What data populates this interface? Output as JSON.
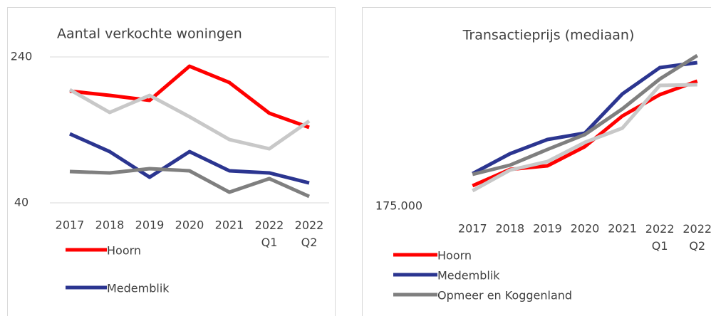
{
  "chart_data": [
    {
      "type": "line",
      "title": "Aantal verkochte woningen",
      "categories": [
        "2017",
        "2018",
        "2019",
        "2020",
        "2021",
        "2022 Q1",
        "2022 Q2"
      ],
      "ylim": [
        40,
        240
      ],
      "yticks": [
        40,
        240
      ],
      "grid": true,
      "series": [
        {
          "name": "Hoorn",
          "color": "#ff0000",
          "values": [
            193.2,
            187.3,
            180.5,
            227.3,
            204.9,
            162.9,
            143.4
          ]
        },
        {
          "color": "#c8c8c8",
          "values": [
            195.1,
            163.9,
            187.3,
            158.0,
            126.8,
            114.1,
            152.2
          ]
        },
        {
          "name": "Medemblik",
          "color": "#2b3590",
          "values": [
            134.6,
            110.2,
            75.1,
            110.2,
            83.9,
            81.0,
            67.3
          ]
        },
        {
          "color": "#7f7f7f",
          "values": [
            82.9,
            81.0,
            86.8,
            83.9,
            54.6,
            73.2,
            48.8
          ]
        }
      ]
    },
    {
      "type": "line",
      "title": "Transactieprijs (mediaan)",
      "categories": [
        "2017",
        "2018",
        "2019",
        "2020",
        "2021",
        "2022 Q1",
        "2022 Q2"
      ],
      "ylim": [
        175000,
        425000
      ],
      "yticks": [
        {
          "value": 175000,
          "label": "175.000"
        }
      ],
      "grid": false,
      "series": [
        {
          "name": "Hoorn",
          "color": "#ff0000",
          "values": [
            204000,
            227000,
            232000,
            259000,
            302000,
            332000,
            351000
          ]
        },
        {
          "color": "#c8c8c8",
          "values": [
            197000,
            226000,
            238000,
            265000,
            285000,
            345000,
            346000
          ]
        },
        {
          "name": "Medemblik",
          "color": "#2b3590",
          "values": [
            221000,
            249000,
            269000,
            278000,
            333000,
            370000,
            377000
          ]
        },
        {
          "name": "Opmeer en Koggenland",
          "color": "#7f7f7f",
          "values": [
            220000,
            233000,
            255000,
            276000,
            312000,
            354000,
            387000
          ]
        }
      ]
    }
  ]
}
